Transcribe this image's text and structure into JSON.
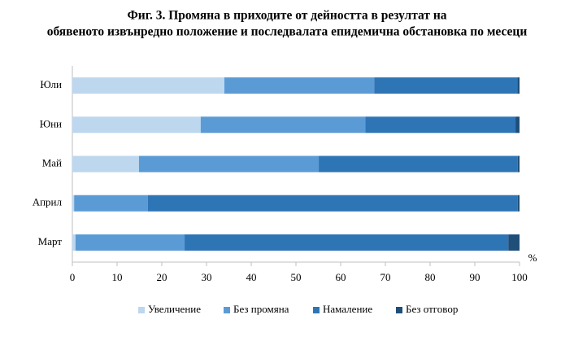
{
  "chart_data": {
    "type": "stacked_barh",
    "title": [
      "Фиг. 3. Промяна в приходите от дейността в резултат на",
      "обявеното извънредно положение и последвалата епидемична обстановка по месеци"
    ],
    "categories": [
      "Юли",
      "Юни",
      "Май",
      "Април",
      "Март"
    ],
    "series": [
      {
        "name": "Увеличение",
        "color": "#bdd7ee",
        "values": [
          34,
          28.7,
          14.9,
          0.4,
          0.7
        ]
      },
      {
        "name": "Без промяна",
        "color": "#5b9bd5",
        "values": [
          33.5,
          36.8,
          40.2,
          16.5,
          24.4
        ]
      },
      {
        "name": "Намаление",
        "color": "#2e75b6",
        "values": [
          32,
          33.6,
          44.5,
          82.7,
          72.4
        ]
      },
      {
        "name": "Без отговор",
        "color": "#1f4e79",
        "values": [
          0.5,
          0.9,
          0.4,
          0.4,
          2.5
        ]
      }
    ],
    "x_label": "%",
    "xlim": [
      0,
      100
    ],
    "xticks": [
      0,
      10,
      20,
      30,
      40,
      50,
      60,
      70,
      80,
      90,
      100
    ],
    "grid": false,
    "legend": "bottom"
  }
}
